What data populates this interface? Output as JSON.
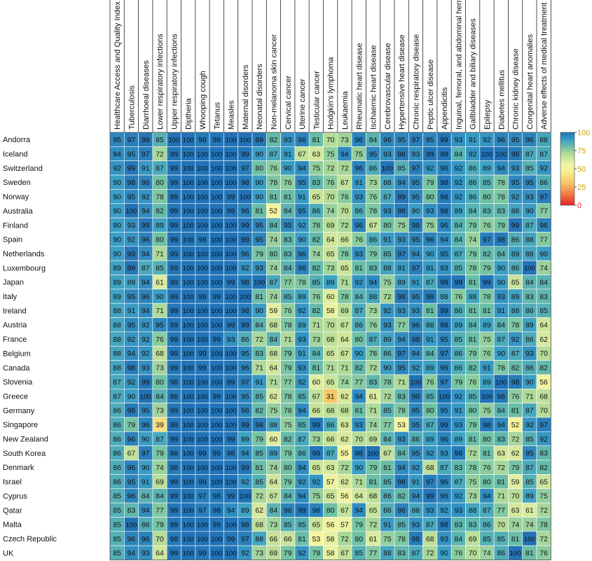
{
  "chart_data": {
    "type": "heatmap",
    "title": "",
    "columns": [
      "Healthcare Access and Quality Index",
      "Tuberculosis",
      "Diarrhoeal diseases",
      "Lower respiratory infections",
      "Upper respiratory infections",
      "Diptheria",
      "Whooping cough",
      "Tetanus",
      "Measles",
      "Maternal disorders",
      "Neonatal disorders",
      "Non-melanoma skin cancer",
      "Cervical cancer",
      "Uterine cancer",
      "Testicular cancer",
      "Hodgkin's lymphoma",
      "Leukaemia",
      "Rheumatic heart disease",
      "Ischaemic heart disease",
      "Cerebrovascular disease",
      "Hypertensive heart disease",
      "Chronic respiratory disease",
      "Peptic ulcer disease",
      "Appendicitis",
      "Inguinal, femoral, and abdominal hernia",
      "Gallbladder and biliary diseases",
      "Epilepsy",
      "Diabetes mellitus",
      "Chronic kidney disease",
      "Congenital heart anomalies",
      "Adverse effects of medical treatment"
    ],
    "rows": [
      {
        "country": "Andorra",
        "values": [
          95,
          97,
          99,
          85,
          100,
          100,
          98,
          99,
          100,
          100,
          99,
          82,
          93,
          96,
          81,
          70,
          73,
          96,
          84,
          96,
          95,
          97,
          95,
          99,
          93,
          91,
          92,
          96,
          95,
          96,
          88
        ]
      },
      {
        "country": "Iceland",
        "values": [
          94,
          95,
          97,
          72,
          99,
          100,
          100,
          100,
          100,
          99,
          90,
          87,
          91,
          67,
          63,
          75,
          94,
          75,
          95,
          93,
          98,
          93,
          99,
          99,
          84,
          92,
          100,
          100,
          98,
          87,
          87
        ]
      },
      {
        "country": "Switzerland",
        "values": [
          92,
          99,
          91,
          87,
          99,
          100,
          100,
          100,
          100,
          97,
          80,
          76,
          90,
          94,
          75,
          72,
          72,
          96,
          86,
          100,
          85,
          97,
          92,
          96,
          92,
          86,
          89,
          94,
          93,
          85,
          92
        ]
      },
      {
        "country": "Sweden",
        "values": [
          90,
          98,
          96,
          80,
          99,
          100,
          100,
          100,
          100,
          98,
          90,
          78,
          76,
          95,
          83,
          76,
          67,
          91,
          73,
          88,
          94,
          95,
          79,
          98,
          92,
          86,
          85,
          78,
          95,
          95,
          86
        ]
      },
      {
        "country": "Norway",
        "values": [
          90,
          95,
          92,
          78,
          99,
          100,
          100,
          100,
          99,
          100,
          90,
          81,
          81,
          91,
          65,
          70,
          76,
          93,
          76,
          87,
          99,
          95,
          80,
          98,
          92,
          86,
          80,
          78,
          92,
          93,
          97
        ]
      },
      {
        "country": "Australia",
        "values": [
          90,
          100,
          94,
          82,
          99,
          100,
          100,
          100,
          99,
          96,
          81,
          52,
          84,
          95,
          86,
          74,
          70,
          86,
          78,
          93,
          98,
          90,
          93,
          98,
          89,
          84,
          83,
          83,
          88,
          90,
          77
        ]
      },
      {
        "country": "Finland",
        "values": [
          90,
          93,
          99,
          89,
          99,
          100,
          100,
          100,
          100,
          99,
          95,
          84,
          95,
          92,
          78,
          69,
          72,
          96,
          67,
          80,
          75,
          98,
          75,
          96,
          84,
          79,
          76,
          79,
          99,
          87,
          96
        ]
      },
      {
        "country": "Spain",
        "values": [
          90,
          92,
          96,
          80,
          99,
          100,
          98,
          100,
          100,
          99,
          95,
          74,
          83,
          90,
          82,
          64,
          66,
          76,
          86,
          91,
          93,
          95,
          96,
          94,
          84,
          74,
          97,
          98,
          86,
          88,
          77
        ]
      },
      {
        "country": "Netherlands",
        "values": [
          90,
          99,
          94,
          71,
          99,
          100,
          100,
          100,
          100,
          96,
          79,
          80,
          83,
          96,
          74,
          65,
          78,
          93,
          79,
          85,
          97,
          94,
          90,
          95,
          87,
          79,
          82,
          84,
          89,
          88,
          90
        ]
      },
      {
        "country": "Luxembourg",
        "values": [
          89,
          99,
          87,
          85,
          99,
          100,
          100,
          100,
          100,
          92,
          93,
          74,
          84,
          96,
          82,
          73,
          65,
          81,
          83,
          88,
          91,
          97,
          91,
          93,
          85,
          78,
          79,
          90,
          86,
          100,
          74
        ]
      },
      {
        "country": "Japan",
        "values": [
          89,
          89,
          94,
          61,
          99,
          100,
          100,
          100,
          99,
          98,
          100,
          87,
          77,
          78,
          85,
          89,
          71,
          92,
          94,
          75,
          89,
          91,
          87,
          99,
          99,
          81,
          99,
          90,
          65,
          84,
          84
        ]
      },
      {
        "country": "Italy",
        "values": [
          89,
          95,
          96,
          90,
          99,
          100,
          99,
          99,
          100,
          100,
          81,
          74,
          85,
          89,
          76,
          60,
          78,
          84,
          88,
          72,
          98,
          95,
          98,
          88,
          76,
          88,
          78,
          93,
          89,
          83,
          83
        ]
      },
      {
        "country": "Ireland",
        "values": [
          88,
          91,
          94,
          71,
          99,
          100,
          100,
          100,
          100,
          98,
          90,
          59,
          76,
          92,
          82,
          58,
          69,
          87,
          73,
          92,
          93,
          93,
          81,
          99,
          86,
          81,
          81,
          91,
          88,
          86,
          85
        ]
      },
      {
        "country": "Austria",
        "values": [
          88,
          95,
          92,
          95,
          99,
          100,
          100,
          100,
          99,
          99,
          84,
          68,
          78,
          89,
          71,
          70,
          67,
          86,
          76,
          93,
          77,
          96,
          88,
          98,
          89,
          84,
          89,
          84,
          78,
          89,
          64
        ]
      },
      {
        "country": "France",
        "values": [
          88,
          92,
          92,
          76,
          99,
          100,
          100,
          99,
          93,
          86,
          72,
          84,
          71,
          93,
          73,
          68,
          64,
          80,
          87,
          89,
          94,
          98,
          91,
          95,
          85,
          81,
          75,
          87,
          92,
          86,
          62
        ]
      },
      {
        "country": "Belgium",
        "values": [
          88,
          94,
          92,
          68,
          99,
          100,
          99,
          100,
          100,
          95,
          83,
          68,
          79,
          91,
          84,
          65,
          67,
          90,
          78,
          86,
          97,
          94,
          84,
          97,
          86,
          79,
          76,
          90,
          87,
          93,
          70
        ]
      },
      {
        "country": "Canada",
        "values": [
          88,
          98,
          93,
          73,
          99,
          100,
          99,
          100,
          100,
          96,
          71,
          64,
          79,
          93,
          81,
          71,
          71,
          82,
          72,
          90,
          95,
          92,
          89,
          96,
          86,
          82,
          91,
          78,
          82,
          86,
          82
        ]
      },
      {
        "country": "Slovenia",
        "values": [
          87,
          92,
          99,
          80,
          98,
          100,
          100,
          100,
          99,
          97,
          91,
          71,
          77,
          92,
          60,
          65,
          74,
          77,
          83,
          78,
          71,
          100,
          76,
          97,
          79,
          76,
          89,
          100,
          98,
          90,
          56
        ]
      },
      {
        "country": "Greece",
        "values": [
          87,
          90,
          100,
          84,
          98,
          100,
          100,
          99,
          100,
          95,
          85,
          62,
          78,
          85,
          67,
          31,
          62,
          94,
          61,
          72,
          83,
          98,
          85,
          100,
          92,
          85,
          100,
          98,
          76,
          71,
          68
        ]
      },
      {
        "country": "Germany",
        "values": [
          86,
          98,
          95,
          73,
          99,
          100,
          100,
          100,
          100,
          96,
          82,
          75,
          78,
          94,
          66,
          68,
          68,
          81,
          71,
          85,
          78,
          95,
          80,
          95,
          91,
          80,
          75,
          84,
          81,
          87,
          70
        ]
      },
      {
        "country": "Singapore",
        "values": [
          86,
          79,
          96,
          39,
          99,
          100,
          100,
          100,
          100,
          99,
          98,
          88,
          75,
          85,
          99,
          86,
          63,
          93,
          74,
          77,
          53,
          95,
          87,
          99,
          93,
          79,
          98,
          94,
          52,
          92,
          97
        ]
      },
      {
        "country": "New Zealand",
        "values": [
          86,
          96,
          90,
          87,
          99,
          100,
          100,
          100,
          99,
          89,
          79,
          60,
          82,
          87,
          73,
          66,
          62,
          70,
          69,
          84,
          93,
          86,
          89,
          96,
          89,
          81,
          80,
          83,
          72,
          85,
          92
        ]
      },
      {
        "country": "South Korea",
        "values": [
          86,
          67,
          97,
          79,
          98,
          100,
          99,
          99,
          98,
          94,
          85,
          89,
          79,
          86,
          99,
          87,
          55,
          98,
          100,
          67,
          84,
          95,
          92,
          93,
          98,
          72,
          81,
          63,
          62,
          95,
          83
        ]
      },
      {
        "country": "Denmark",
        "values": [
          86,
          96,
          90,
          74,
          98,
          100,
          100,
          100,
          100,
          99,
          81,
          74,
          80,
          94,
          65,
          63,
          72,
          90,
          79,
          81,
          94,
          92,
          68,
          87,
          83,
          78,
          76,
          72,
          79,
          87,
          82
        ]
      },
      {
        "country": "Israel",
        "values": [
          86,
          95,
          91,
          69,
          99,
          100,
          99,
          100,
          100,
          92,
          85,
          64,
          79,
          92,
          92,
          57,
          62,
          71,
          81,
          85,
          98,
          91,
          97,
          96,
          87,
          75,
          80,
          81,
          59,
          85,
          65
        ]
      },
      {
        "country": "Cyprus",
        "values": [
          85,
          96,
          84,
          84,
          99,
          100,
          97,
          98,
          99,
          100,
          72,
          67,
          84,
          94,
          75,
          65,
          56,
          64,
          68,
          86,
          82,
          94,
          99,
          96,
          92,
          73,
          94,
          71,
          70,
          89,
          75
        ]
      },
      {
        "country": "Qatar",
        "values": [
          85,
          83,
          94,
          77,
          99,
          100,
          97,
          98,
          94,
          89,
          62,
          84,
          96,
          99,
          96,
          80,
          67,
          94,
          65,
          86,
          96,
          88,
          93,
          92,
          93,
          88,
          87,
          77,
          63,
          61,
          72
        ]
      },
      {
        "country": "Malta",
        "values": [
          85,
          100,
          86,
          79,
          99,
          100,
          100,
          99,
          100,
          98,
          68,
          73,
          85,
          85,
          65,
          56,
          57,
          79,
          72,
          91,
          85,
          93,
          87,
          98,
          83,
          83,
          86,
          70,
          74,
          74,
          78
        ]
      },
      {
        "country": "Czech Republic",
        "values": [
          85,
          96,
          96,
          70,
          98,
          100,
          100,
          100,
          99,
          97,
          88,
          66,
          66,
          81,
          53,
          58,
          72,
          80,
          61,
          75,
          78,
          98,
          68,
          93,
          84,
          69,
          85,
          85,
          81,
          100,
          72
        ]
      },
      {
        "country": "UK",
        "values": [
          85,
          94,
          93,
          64,
          99,
          100,
          99,
          100,
          100,
          92,
          73,
          69,
          79,
          92,
          79,
          58,
          67,
          85,
          77,
          88,
          83,
          87,
          72,
          90,
          76,
          70,
          74,
          86,
          100,
          81,
          76
        ]
      }
    ],
    "color_scale": {
      "min": 0,
      "max": 100,
      "ticks": [
        "100",
        "75",
        "50",
        "25",
        "0"
      ],
      "stops": [
        {
          "value": 0,
          "color": "#e8202a"
        },
        {
          "value": 15,
          "color": "#f27a45"
        },
        {
          "value": 30,
          "color": "#f6c566"
        },
        {
          "value": 45,
          "color": "#f7ee8d"
        },
        {
          "value": 55,
          "color": "#f4f5a3"
        },
        {
          "value": 70,
          "color": "#b6dc98"
        },
        {
          "value": 80,
          "color": "#6fc1a4"
        },
        {
          "value": 90,
          "color": "#3a9ec6"
        },
        {
          "value": 100,
          "color": "#2172b6"
        }
      ]
    }
  }
}
